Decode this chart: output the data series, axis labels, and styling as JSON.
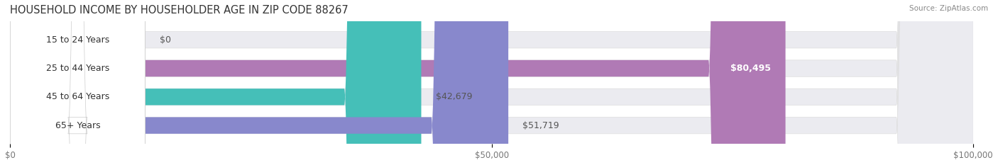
{
  "title": "HOUSEHOLD INCOME BY HOUSEHOLDER AGE IN ZIP CODE 88267",
  "source": "Source: ZipAtlas.com",
  "categories": [
    "15 to 24 Years",
    "25 to 44 Years",
    "45 to 64 Years",
    "65+ Years"
  ],
  "values": [
    0,
    80495,
    42679,
    51719
  ],
  "bar_colors": [
    "#a8c8e8",
    "#b07ab5",
    "#45bfb8",
    "#8888cc"
  ],
  "background_color": "#ffffff",
  "bar_bg_color": "#ebebf0",
  "label_bg_color": "#ffffff",
  "xlim": [
    0,
    100000
  ],
  "xticks": [
    0,
    50000,
    100000
  ],
  "xticklabels": [
    "$0",
    "$50,000",
    "$100,000"
  ],
  "bar_height": 0.58,
  "label_fontsize": 9,
  "title_fontsize": 10.5,
  "value_labels": [
    "$0",
    "$80,495",
    "$42,679",
    "$51,719"
  ],
  "value_label_colors": [
    "#555555",
    "#ffffff",
    "#555555",
    "#555555"
  ],
  "value_inside": [
    false,
    true,
    false,
    false
  ]
}
